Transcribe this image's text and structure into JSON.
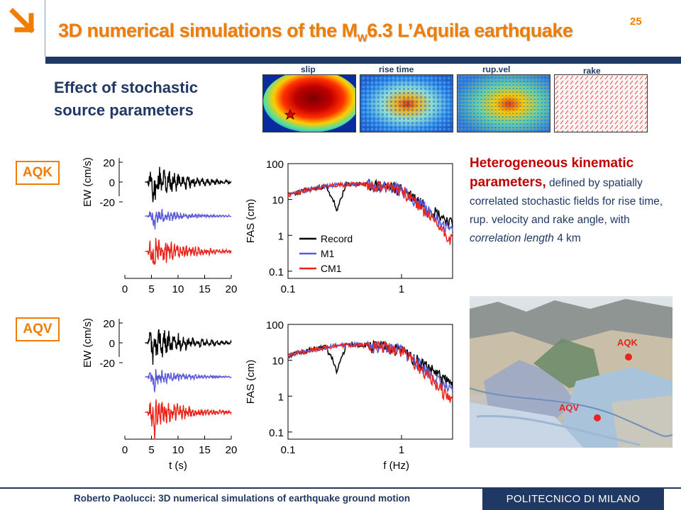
{
  "header": {
    "title_pre": "3D numerical simulations of the M",
    "title_sub": "W",
    "title_post": "6.3 L’Aquila earthquake",
    "slide_number": "25",
    "logo_icon": "arrow-down-right-icon",
    "accent_color": "#f07c00",
    "brand_color": "#1f3864"
  },
  "subtitle": {
    "line1": "Effect of stochastic",
    "line2": "source parameters"
  },
  "source_fields": [
    {
      "label": "slip"
    },
    {
      "label": "rise time"
    },
    {
      "label": "rup.vel"
    },
    {
      "label": "rake"
    }
  ],
  "stations": {
    "top": "AQK",
    "bottom": "AQV"
  },
  "description": {
    "highlight": "Heterogeneous kinematic parameters,",
    "part1": " defined by spatially correlated stochastic fields for rise time, rup. velocity and rake angle, with ",
    "italic": "correlation length",
    "part2": " 4 km"
  },
  "map": {
    "labels": [
      "AQK",
      "AQV"
    ],
    "marker_color": "#e8241b"
  },
  "footer": {
    "author": "Roberto Paolucci: 3D numerical simulations of earthquake ground motion",
    "institution": "POLITECNICO DI MILANO"
  },
  "chart_data": [
    {
      "type": "line",
      "name": "AQK EW velocity",
      "xlabel": "",
      "ylabel": "EW (cm/s)",
      "x_ticks": [
        "0",
        "5",
        "10",
        "15",
        "20"
      ],
      "y_ticks": [
        "20",
        "0",
        "-20"
      ],
      "xlim": [
        0,
        20
      ],
      "series_colors": [
        "#000000",
        "#5b5bdc",
        "#e8241b"
      ]
    },
    {
      "type": "line",
      "name": "AQK Fourier amplitude spectrum",
      "xlabel": "",
      "ylabel": "FAS (cm)",
      "x_ticks": [
        "0.1",
        "1"
      ],
      "y_ticks": [
        "100",
        "10",
        "1",
        "0.1"
      ],
      "log_x": true,
      "log_y": true,
      "legend": [
        "Record",
        "M1",
        "CM1"
      ],
      "series_colors": [
        "#000000",
        "#5b5bdc",
        "#e8241b"
      ]
    },
    {
      "type": "line",
      "name": "AQV EW velocity",
      "xlabel": "t (s)",
      "ylabel": "EW (cm/s)",
      "x_ticks": [
        "0",
        "5",
        "10",
        "15",
        "20"
      ],
      "y_ticks": [
        "20",
        "0",
        "-20"
      ],
      "xlim": [
        0,
        20
      ],
      "series_colors": [
        "#000000",
        "#5b5bdc",
        "#e8241b"
      ]
    },
    {
      "type": "line",
      "name": "AQV Fourier amplitude spectrum",
      "xlabel": "f (Hz)",
      "ylabel": "FAS (cm)",
      "x_ticks": [
        "0.1",
        "1"
      ],
      "y_ticks": [
        "100",
        "10",
        "1",
        "0.1"
      ],
      "log_x": true,
      "log_y": true,
      "series_colors": [
        "#000000",
        "#5b5bdc",
        "#e8241b"
      ]
    }
  ]
}
